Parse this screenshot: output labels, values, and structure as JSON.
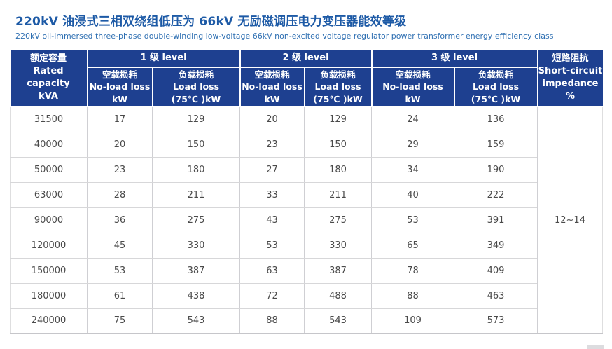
{
  "page": {
    "title": "220kV 油浸式三相双绕组低压为 66kV 无励磁调压电力变压器能效等级",
    "subtitle": "220kV oil-immersed three-phase double-winding low-voltage 66kV non-excited voltage regulator power transformer energy efficiency class"
  },
  "colors": {
    "header_bg": "#1e4090",
    "title_text": "#1d5aa6",
    "subtitle_text": "#2e6fb2",
    "data_text": "#4a4a4a",
    "grid_line": "#cfcfd3"
  },
  "table": {
    "header": {
      "rated_capacity": "额定容量\nRated capacity\nkVA",
      "levels": [
        "1 级 level",
        "2 级 level",
        "3 级 level"
      ],
      "no_load": "空载损耗\nNo-load loss\nkW",
      "load": "负载损耗\nLoad loss\n(75℃ )kW",
      "impedance": "短路阻抗\nShort-circuit\nimpedance\n%"
    },
    "rows": [
      {
        "capacity": "31500",
        "values": [
          "17",
          "129",
          "20",
          "129",
          "24",
          "136"
        ]
      },
      {
        "capacity": "40000",
        "values": [
          "20",
          "150",
          "23",
          "150",
          "29",
          "159"
        ]
      },
      {
        "capacity": "50000",
        "values": [
          "23",
          "180",
          "27",
          "180",
          "34",
          "190"
        ]
      },
      {
        "capacity": "63000",
        "values": [
          "28",
          "211",
          "33",
          "211",
          "40",
          "222"
        ]
      },
      {
        "capacity": "90000",
        "values": [
          "36",
          "275",
          "43",
          "275",
          "53",
          "391"
        ]
      },
      {
        "capacity": "120000",
        "values": [
          "45",
          "330",
          "53",
          "330",
          "65",
          "349"
        ]
      },
      {
        "capacity": "150000",
        "values": [
          "53",
          "387",
          "63",
          "387",
          "78",
          "409"
        ]
      },
      {
        "capacity": "180000",
        "values": [
          "61",
          "438",
          "72",
          "488",
          "88",
          "463"
        ]
      },
      {
        "capacity": "240000",
        "values": [
          "75",
          "543",
          "88",
          "543",
          "109",
          "573"
        ]
      }
    ],
    "impedance_value": "12~14"
  }
}
